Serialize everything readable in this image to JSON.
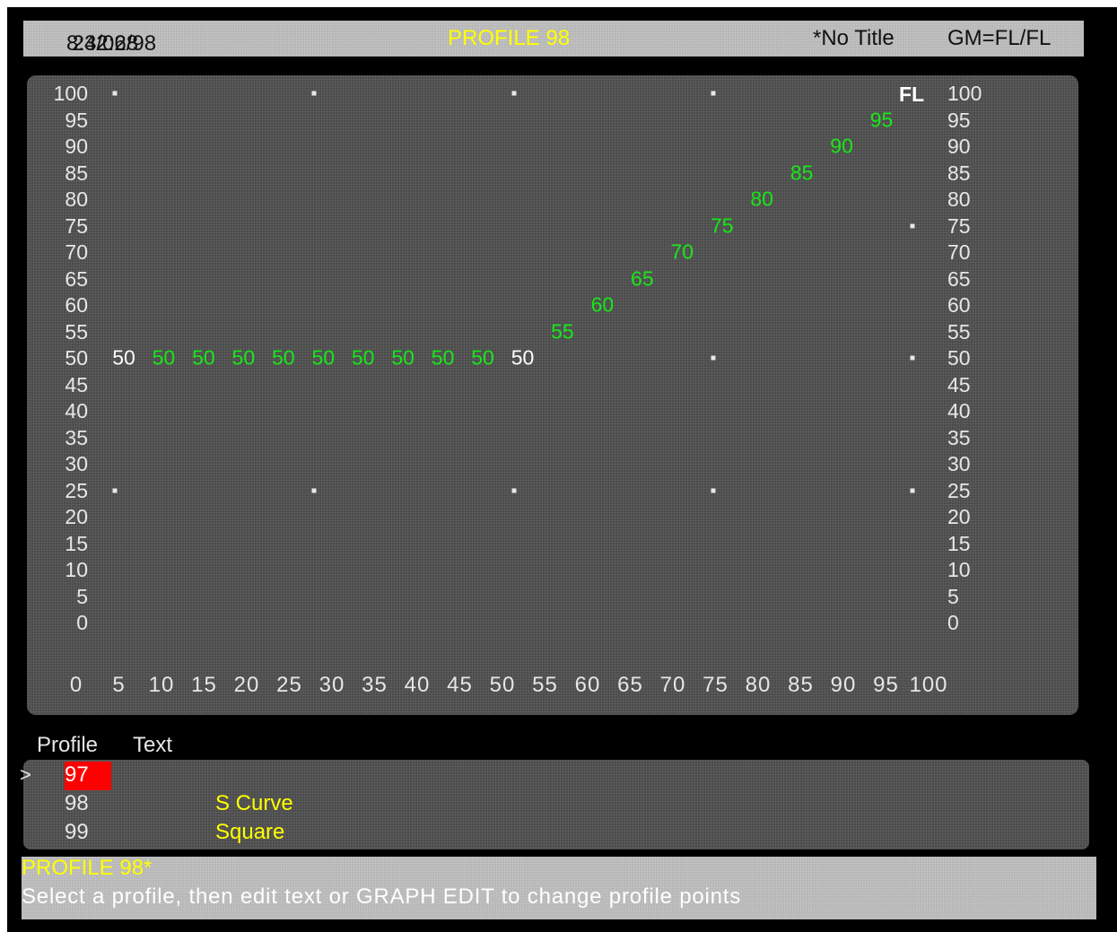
{
  "header": {
    "time": "8:32:28",
    "date": "24/06/98",
    "title": "PROFILE 98",
    "subtitle": "*No Title",
    "mode": "GM=FL/FL"
  },
  "chart_data": {
    "type": "scatter",
    "title": "",
    "series_label": "FL",
    "xlim": [
      0,
      100
    ],
    "ylim": [
      0,
      100
    ],
    "x_ticks": [
      0,
      5,
      10,
      15,
      20,
      25,
      30,
      35,
      40,
      45,
      50,
      55,
      60,
      65,
      70,
      75,
      80,
      85,
      90,
      95,
      100
    ],
    "y_ticks": [
      100,
      95,
      90,
      85,
      80,
      75,
      70,
      65,
      60,
      55,
      50,
      45,
      40,
      35,
      30,
      25,
      20,
      15,
      10,
      5,
      0
    ],
    "points": [
      {
        "x": 0,
        "y": 50,
        "label": "50",
        "color": "#ffffff"
      },
      {
        "x": 5,
        "y": 50,
        "label": "50",
        "color": "#19e619"
      },
      {
        "x": 10,
        "y": 50,
        "label": "50",
        "color": "#19e619"
      },
      {
        "x": 15,
        "y": 50,
        "label": "50",
        "color": "#19e619"
      },
      {
        "x": 20,
        "y": 50,
        "label": "50",
        "color": "#19e619"
      },
      {
        "x": 25,
        "y": 50,
        "label": "50",
        "color": "#19e619"
      },
      {
        "x": 30,
        "y": 50,
        "label": "50",
        "color": "#19e619"
      },
      {
        "x": 35,
        "y": 50,
        "label": "50",
        "color": "#19e619"
      },
      {
        "x": 40,
        "y": 50,
        "label": "50",
        "color": "#19e619"
      },
      {
        "x": 45,
        "y": 50,
        "label": "50",
        "color": "#19e619"
      },
      {
        "x": 50,
        "y": 50,
        "label": "50",
        "color": "#ffffff"
      },
      {
        "x": 55,
        "y": 55,
        "label": "55",
        "color": "#19e619"
      },
      {
        "x": 60,
        "y": 60,
        "label": "60",
        "color": "#19e619"
      },
      {
        "x": 65,
        "y": 65,
        "label": "65",
        "color": "#19e619"
      },
      {
        "x": 70,
        "y": 70,
        "label": "70",
        "color": "#19e619"
      },
      {
        "x": 75,
        "y": 75,
        "label": "75",
        "color": "#19e619"
      },
      {
        "x": 80,
        "y": 80,
        "label": "80",
        "color": "#19e619"
      },
      {
        "x": 85,
        "y": 85,
        "label": "85",
        "color": "#19e619"
      },
      {
        "x": 90,
        "y": 90,
        "label": "90",
        "color": "#19e619"
      },
      {
        "x": 95,
        "y": 95,
        "label": "95",
        "color": "#19e619"
      }
    ],
    "markers": [
      {
        "x": 0,
        "y": 100
      },
      {
        "x": 25,
        "y": 100
      },
      {
        "x": 50,
        "y": 100
      },
      {
        "x": 75,
        "y": 100
      },
      {
        "x": 100,
        "y": 75
      },
      {
        "x": 75,
        "y": 50
      },
      {
        "x": 100,
        "y": 50
      },
      {
        "x": 0,
        "y": 25
      },
      {
        "x": 25,
        "y": 25
      },
      {
        "x": 50,
        "y": 25
      },
      {
        "x": 75,
        "y": 25
      },
      {
        "x": 100,
        "y": 25
      }
    ]
  },
  "list": {
    "col_profile": "Profile",
    "col_text": "Text",
    "cursor": ">",
    "rows": [
      {
        "num": "97",
        "text": "",
        "selected": true
      },
      {
        "num": "98",
        "text": "S Curve",
        "selected": false
      },
      {
        "num": "99",
        "text": "Square",
        "selected": false
      }
    ]
  },
  "status": {
    "line1": "PROFILE 98*",
    "line2": "Select a profile, then edit text or GRAPH EDIT to change profile points"
  }
}
